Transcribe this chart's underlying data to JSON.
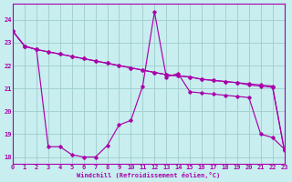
{
  "background_color": "#c8eef0",
  "grid_color": "#a0cccc",
  "line_color": "#aa00aa",
  "xlabel": "Windchill (Refroidissement éolien,°C)",
  "xlim": [
    0,
    23
  ],
  "ylim": [
    17.7,
    24.7
  ],
  "yticks": [
    18,
    19,
    20,
    21,
    22,
    23,
    24
  ],
  "xticks": [
    0,
    1,
    2,
    3,
    4,
    5,
    6,
    7,
    8,
    9,
    10,
    11,
    12,
    13,
    14,
    15,
    16,
    17,
    18,
    19,
    20,
    21,
    22,
    23
  ],
  "line1_x": [
    0,
    1,
    2,
    3,
    4,
    5,
    6,
    7,
    8,
    9,
    10,
    11,
    12,
    13,
    14,
    15,
    16,
    17,
    18,
    19,
    20,
    21,
    22,
    23
  ],
  "line1_y": [
    23.5,
    22.85,
    22.7,
    22.6,
    22.5,
    22.4,
    22.3,
    22.2,
    22.1,
    22.0,
    21.9,
    21.8,
    21.7,
    21.6,
    21.55,
    21.5,
    21.4,
    21.35,
    21.3,
    21.25,
    21.2,
    21.15,
    21.1,
    18.3
  ],
  "line2_x": [
    0,
    1,
    2,
    3,
    4,
    5,
    6,
    7,
    8,
    9,
    10,
    11,
    12,
    13,
    14,
    15,
    16,
    17,
    18,
    19,
    20,
    21,
    22,
    23
  ],
  "line2_y": [
    23.5,
    22.85,
    22.7,
    18.45,
    18.45,
    18.1,
    18.0,
    18.0,
    18.5,
    19.4,
    19.6,
    21.1,
    24.35,
    21.5,
    21.65,
    20.85,
    20.8,
    20.75,
    20.7,
    20.65,
    20.6,
    19.0,
    18.85,
    18.35
  ],
  "line3_x": [
    0,
    1,
    2,
    3,
    4,
    5,
    6,
    7,
    8,
    9,
    10,
    11,
    12,
    13,
    14,
    15,
    16,
    17,
    18,
    19,
    20,
    21,
    22,
    23
  ],
  "line3_y": [
    23.5,
    22.85,
    22.7,
    22.6,
    22.5,
    22.4,
    22.3,
    22.2,
    22.1,
    22.0,
    21.9,
    21.8,
    21.7,
    21.6,
    21.55,
    21.5,
    21.4,
    21.35,
    21.3,
    21.25,
    21.15,
    21.1,
    21.05,
    18.3
  ]
}
